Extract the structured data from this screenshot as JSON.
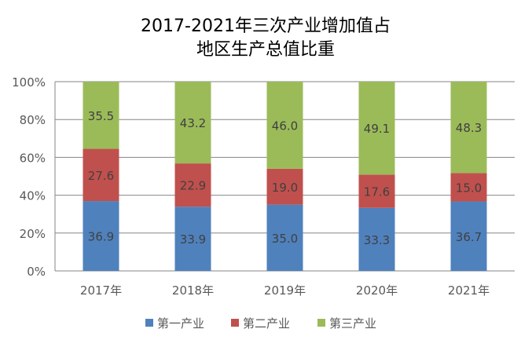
{
  "chart_data": {
    "type": "bar",
    "stacked": true,
    "title_lines": [
      "2017-2021年三次产业增加值占",
      "地区生产总值比重"
    ],
    "categories": [
      "2017年",
      "2018年",
      "2019年",
      "2020年",
      "2021年"
    ],
    "series": [
      {
        "name": "第一产业",
        "color": "#4F81BD",
        "values": [
          36.9,
          33.9,
          35.0,
          33.3,
          36.7
        ]
      },
      {
        "name": "第二产业",
        "color": "#C0504D",
        "values": [
          27.6,
          22.9,
          19.0,
          17.6,
          15.0
        ]
      },
      {
        "name": "第三产业",
        "color": "#9BBB59",
        "values": [
          35.5,
          43.2,
          46.0,
          49.1,
          48.3
        ]
      }
    ],
    "yticks": [
      "0%",
      "20%",
      "40%",
      "60%",
      "80%",
      "100%"
    ],
    "ylim": [
      0,
      100
    ],
    "grid": true,
    "legend": "bottom"
  }
}
